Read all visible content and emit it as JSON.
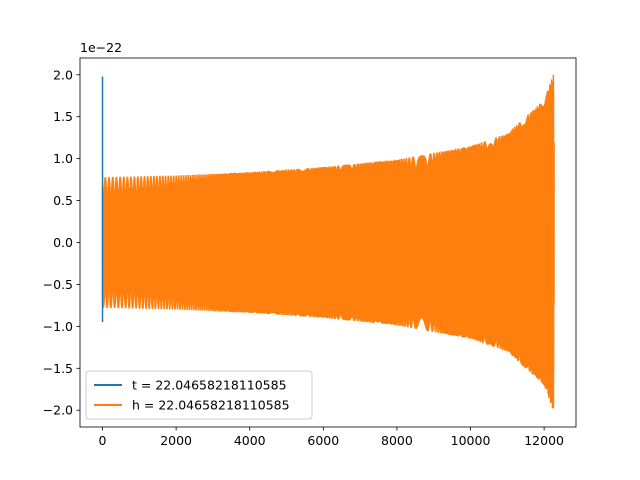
{
  "chart_data": {
    "type": "line",
    "x_ticks": [
      0,
      2000,
      4000,
      6000,
      8000,
      10000,
      12000
    ],
    "x_tick_labels": [
      "0",
      "2000",
      "4000",
      "6000",
      "8000",
      "10000",
      "12000"
    ],
    "y_ticks": [
      -2.0,
      -1.5,
      -1.0,
      -0.5,
      0.0,
      0.5,
      1.0,
      1.5,
      2.0
    ],
    "y_tick_labels": [
      "−2.0",
      "−1.5",
      "−1.0",
      "−0.5",
      "0.0",
      "0.5",
      "1.0",
      "1.5",
      "2.0"
    ],
    "y_offset_label": "1e−22",
    "xlim": [
      -612,
      12866
    ],
    "ylim": [
      -2.2,
      2.2
    ],
    "grid": false,
    "legend_position": "lower-left",
    "series": [
      {
        "name": "t = 22.04658218110585",
        "color": "#1f77b4",
        "description_points": [
          {
            "x": 0,
            "y": 1.98
          },
          {
            "x": 0,
            "y": -0.95
          }
        ]
      },
      {
        "name": "h = 22.04658218110585",
        "color": "#ff7f0e",
        "x_start": 0,
        "x_end": 12270,
        "amplitude_samples": [
          {
            "x": 0,
            "y": 0.78
          },
          {
            "x": 2000,
            "y": 0.8
          },
          {
            "x": 4000,
            "y": 0.84
          },
          {
            "x": 6000,
            "y": 0.9
          },
          {
            "x": 8000,
            "y": 0.99
          },
          {
            "x": 10000,
            "y": 1.15
          },
          {
            "x": 11000,
            "y": 1.3
          },
          {
            "x": 12000,
            "y": 1.7
          },
          {
            "x": 12270,
            "y": 2.03
          }
        ]
      }
    ]
  }
}
